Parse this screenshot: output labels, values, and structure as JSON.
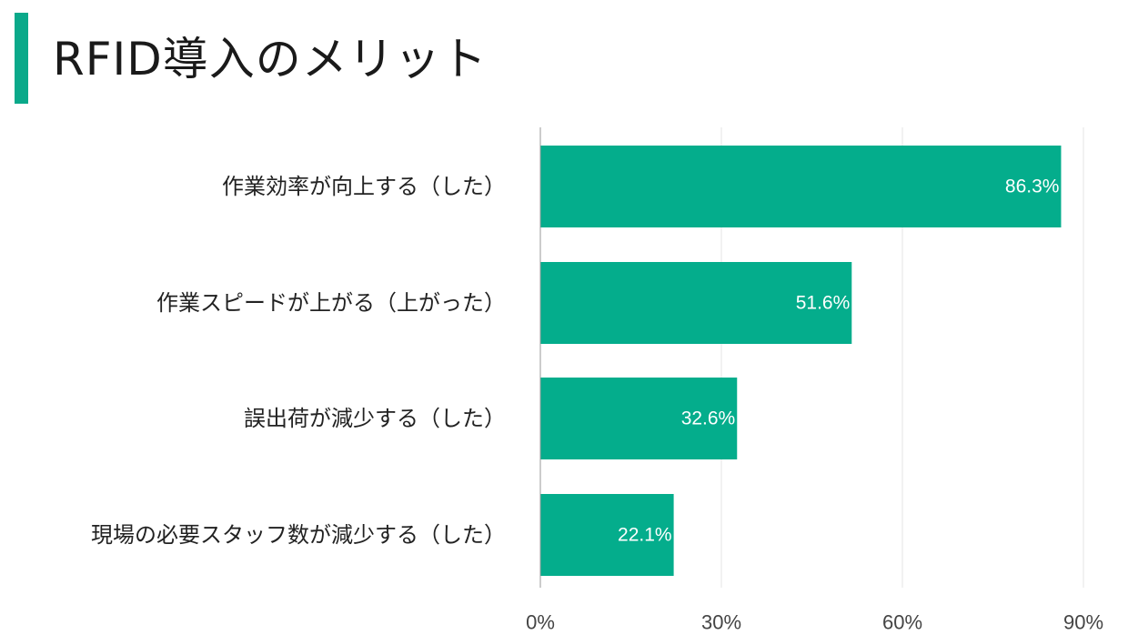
{
  "colors": {
    "accent": "#0aa98a",
    "bar": "#04ad8c",
    "grid": "#e6e6e6",
    "axis": "#9a9a9a"
  },
  "header": {
    "title": "RFID導入のメリット"
  },
  "chart_data": {
    "type": "bar",
    "orientation": "horizontal",
    "categories": [
      "作業効率が向上する（した）",
      "作業スピードが上がる（上がった）",
      "誤出荷が減少する（した）",
      "現場の必要スタッフ数が減少する（した）"
    ],
    "values": [
      86.3,
      51.6,
      32.6,
      22.1
    ],
    "value_labels": [
      "86.3%",
      "51.6%",
      "32.6%",
      "22.1%"
    ],
    "xlim": [
      0,
      90
    ],
    "xticks": [
      0,
      30,
      60,
      90
    ],
    "xtick_labels": [
      "0%",
      "30%",
      "60%",
      "90%"
    ],
    "grid": true,
    "legend": "none"
  }
}
